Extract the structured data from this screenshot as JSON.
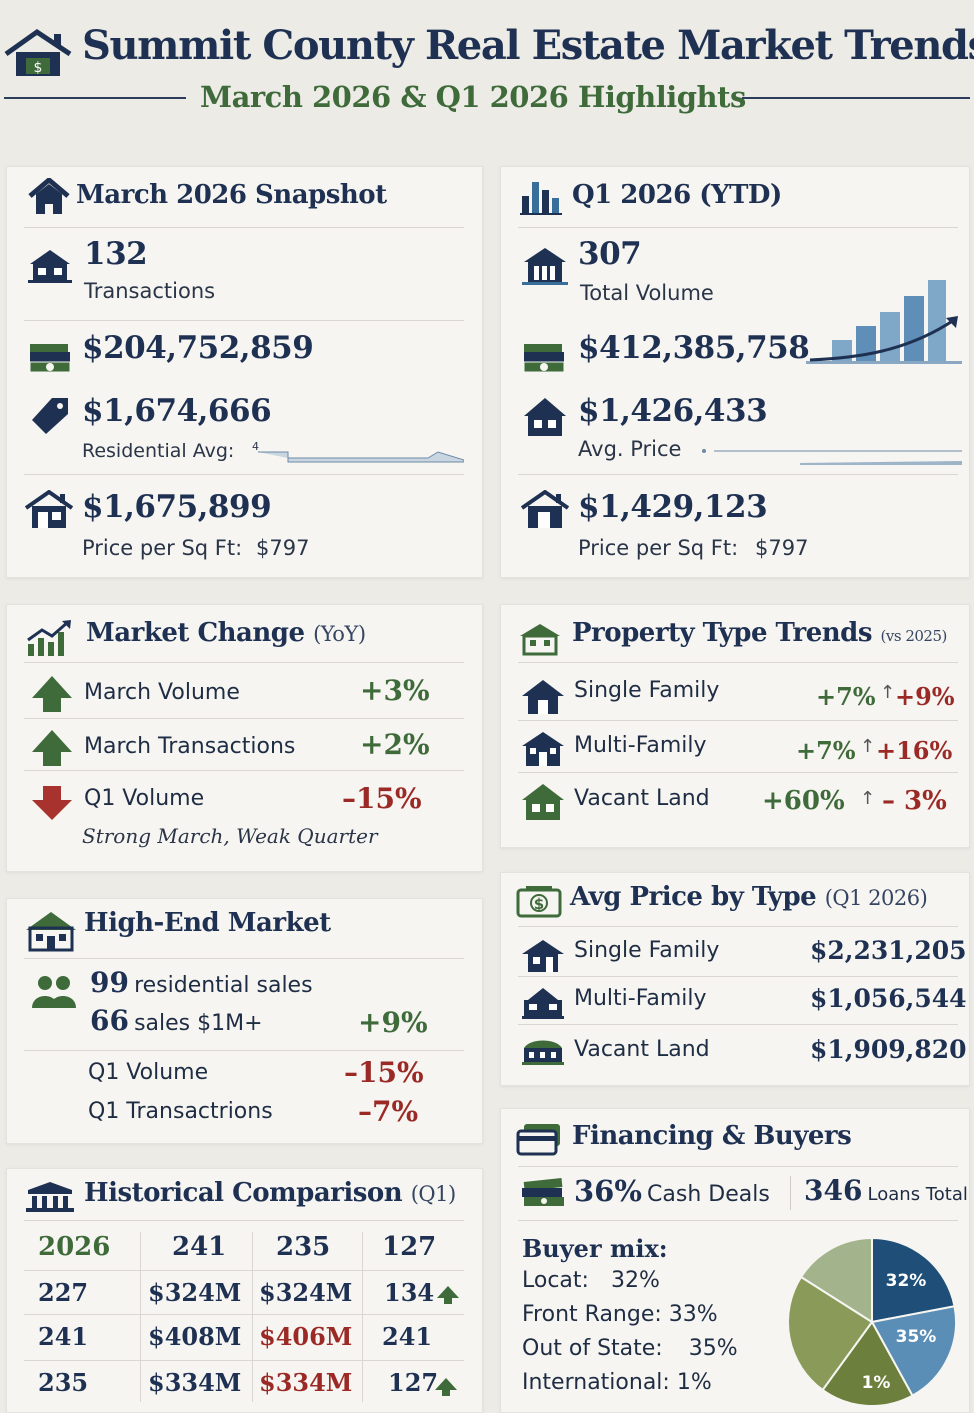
{
  "header": {
    "title": "Summit County Real Estate Market Trends",
    "subtitle": "March 2026 & Q1 2026 Highlights"
  },
  "march_snapshot": {
    "title": "March 2026 Snapshot",
    "transactions_value": "132",
    "transactions_label": "Transactions",
    "volume_value": "$204,752,859",
    "avg_value": "$1,674,666",
    "avg_label": "Residential Avg:",
    "avg_marker": "4",
    "median_value": "$1,675,899",
    "ppsf_label": "Price per Sq Ft:",
    "ppsf_value": "$797"
  },
  "q1_ytd": {
    "title": "Q1 2026 (YTD)",
    "volume_value": "307",
    "volume_label": "Total Volume",
    "dollar_value": "$412,385,758",
    "avg_value": "$1,426,433",
    "avg_label": "Avg. Price",
    "median_value": "$1,429,123",
    "ppsf_label": "Price per Sq Ft:",
    "ppsf_value": "$797"
  },
  "market_change": {
    "title": "Market Change",
    "title_suffix": "(YoY)",
    "rows": [
      {
        "label": "March Volume",
        "value": "+3%"
      },
      {
        "label": "March Transactions",
        "value": "+2%"
      },
      {
        "label": "Q1 Volume",
        "value": "–15%"
      }
    ],
    "note": "Strong March, Weak Quarter"
  },
  "property_trends": {
    "title": "Property Type Trends",
    "title_suffix": "(vs 2025)",
    "rows": [
      {
        "label": "Single Family",
        "value1": "+7%",
        "value2": "+9%"
      },
      {
        "label": "Multi-Family",
        "value1": "+7%",
        "value2": "+16%"
      },
      {
        "label": "Vacant Land",
        "value1": "+60%",
        "value2": "– 3%"
      }
    ]
  },
  "high_end": {
    "title": "High-End Market",
    "residential_count": "99",
    "residential_label": "residential sales",
    "million_count": "66",
    "million_label": "sales $1M+",
    "million_change": "+9%",
    "rows": [
      {
        "label": "Q1 Volume",
        "value": "–15%"
      },
      {
        "label": "Q1 Transactrions",
        "value": "–7%"
      }
    ]
  },
  "avg_by_type": {
    "title": "Avg Price by Type",
    "title_suffix": "(Q1 2026)",
    "rows": [
      {
        "label": "Single Family",
        "value": "$2,231,205"
      },
      {
        "label": "Multi-Family",
        "value": "$1,056,544"
      },
      {
        "label": "Vacant Land",
        "value": "$1,909,820"
      }
    ]
  },
  "historical": {
    "title": "Historical Comparison",
    "title_suffix": "(Q1)",
    "header_row": [
      "2026",
      "241",
      "235",
      "127"
    ],
    "rows": [
      [
        "227",
        "$324M",
        "$324M",
        "134"
      ],
      [
        "241",
        "$408M",
        "$406M",
        "241"
      ],
      [
        "235",
        "$334M",
        "$334M",
        "127"
      ]
    ]
  },
  "financing": {
    "title": "Financing & Buyers",
    "cash_value": "36%",
    "cash_label": "Cash Deals",
    "loans_value": "346",
    "loans_label": "Loans Total",
    "buyer_mix_title": "Buyer mix:",
    "buyer_mix": [
      {
        "label": "Locat:",
        "value": "32%"
      },
      {
        "label": "Front Range:",
        "value": "33%"
      },
      {
        "label": "Out of State:",
        "value": "35%"
      },
      {
        "label": "International:",
        "value": "1%"
      }
    ],
    "pie_labels": [
      "32%",
      "35%",
      "1%"
    ]
  },
  "colors": {
    "navy": "#1f3152",
    "green": "#3f6b3b",
    "red": "#9b2a26",
    "pie_navy": "#1f4f78",
    "pie_blue": "#5b8eb6",
    "pie_olive": "#6d7f3c",
    "pie_light_olive": "#8a9a58",
    "pie_sage": "#a3b48d"
  }
}
